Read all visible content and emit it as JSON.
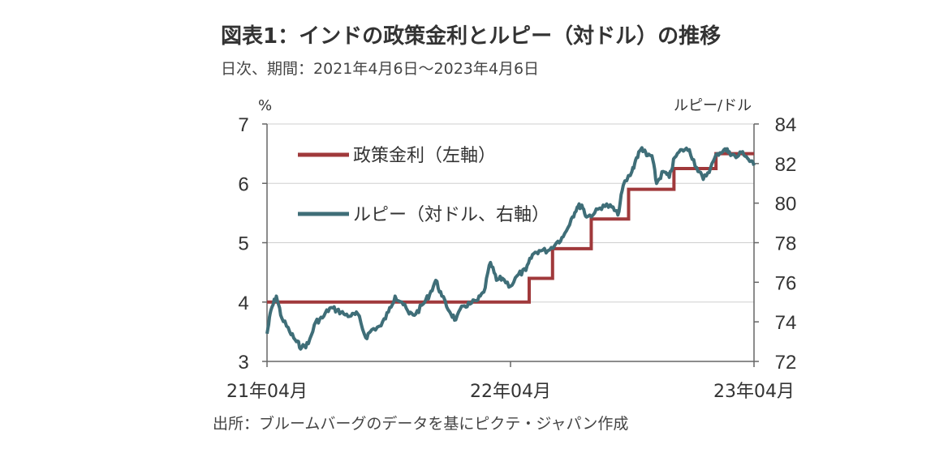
{
  "header": {
    "title": "図表1：インドの政策金利とルピー（対ドル）の推移",
    "subtitle": "日次、期間：2021年4月6日～2023年4月6日"
  },
  "footer": {
    "source": "出所：ブルームバーグのデータを基にピクテ・ジャパン作成"
  },
  "chart_data": {
    "type": "line",
    "left_axis": {
      "unit": "%",
      "range": [
        3,
        7
      ],
      "ticks": [
        "3",
        "4",
        "5",
        "6",
        "7"
      ]
    },
    "right_axis": {
      "unit": "ルピー/ドル",
      "range": [
        72,
        84
      ],
      "ticks": [
        "72",
        "74",
        "76",
        "78",
        "80",
        "82",
        "84"
      ]
    },
    "x_axis": {
      "ticks": [
        "21年04月",
        "22年04月",
        "23年04月"
      ]
    },
    "grid": "horizontal",
    "legend_position": "top-left",
    "series": [
      {
        "name": "政策金利（左軸）",
        "axis": "left",
        "color": "#a0393b",
        "points": [
          [
            "2021-04-06",
            4.0
          ],
          [
            "2022-05-04",
            4.4
          ],
          [
            "2022-06-08",
            4.9
          ],
          [
            "2022-08-05",
            5.4
          ],
          [
            "2022-09-30",
            5.9
          ],
          [
            "2022-12-07",
            6.25
          ],
          [
            "2023-02-08",
            6.5
          ],
          [
            "2023-04-06",
            6.5
          ]
        ]
      },
      {
        "name": "ルピー（対ドル、右軸）",
        "axis": "right",
        "color": "#3f6e78",
        "points": [
          [
            "2021-04-06",
            73.4
          ],
          [
            "2021-04-12",
            74.6
          ],
          [
            "2021-04-20",
            75.3
          ],
          [
            "2021-04-28",
            74.2
          ],
          [
            "2021-05-10",
            73.5
          ],
          [
            "2021-05-20",
            73.0
          ],
          [
            "2021-05-28",
            72.7
          ],
          [
            "2021-06-07",
            72.9
          ],
          [
            "2021-06-18",
            74.0
          ],
          [
            "2021-06-28",
            74.2
          ],
          [
            "2021-07-09",
            74.7
          ],
          [
            "2021-07-20",
            74.6
          ],
          [
            "2021-07-30",
            74.4
          ],
          [
            "2021-08-10",
            74.3
          ],
          [
            "2021-08-20",
            74.4
          ],
          [
            "2021-09-01",
            73.2
          ],
          [
            "2021-09-10",
            73.6
          ],
          [
            "2021-09-24",
            73.8
          ],
          [
            "2021-10-05",
            74.5
          ],
          [
            "2021-10-15",
            75.3
          ],
          [
            "2021-10-25",
            75.0
          ],
          [
            "2021-11-05",
            74.4
          ],
          [
            "2021-11-15",
            74.4
          ],
          [
            "2021-11-26",
            74.9
          ],
          [
            "2021-12-06",
            75.4
          ],
          [
            "2021-12-15",
            76.1
          ],
          [
            "2021-12-24",
            75.3
          ],
          [
            "2022-01-05",
            74.5
          ],
          [
            "2022-01-14",
            74.1
          ],
          [
            "2022-01-25",
            74.8
          ],
          [
            "2022-02-04",
            74.9
          ],
          [
            "2022-02-16",
            75.1
          ],
          [
            "2022-02-25",
            75.5
          ],
          [
            "2022-03-07",
            77.0
          ],
          [
            "2022-03-16",
            76.1
          ],
          [
            "2022-03-25",
            76.2
          ],
          [
            "2022-04-06",
            75.8
          ],
          [
            "2022-04-18",
            76.4
          ],
          [
            "2022-04-29",
            76.6
          ],
          [
            "2022-05-09",
            77.4
          ],
          [
            "2022-05-19",
            77.6
          ],
          [
            "2022-06-01",
            77.6
          ],
          [
            "2022-06-14",
            78.0
          ],
          [
            "2022-06-24",
            78.3
          ],
          [
            "2022-07-06",
            79.2
          ],
          [
            "2022-07-15",
            79.8
          ],
          [
            "2022-07-22",
            79.9
          ],
          [
            "2022-07-29",
            79.3
          ],
          [
            "2022-08-10",
            79.5
          ],
          [
            "2022-08-23",
            79.9
          ],
          [
            "2022-09-05",
            79.8
          ],
          [
            "2022-09-14",
            79.4
          ],
          [
            "2022-09-22",
            80.9
          ],
          [
            "2022-10-05",
            81.6
          ],
          [
            "2022-10-12",
            82.3
          ],
          [
            "2022-10-20",
            82.8
          ],
          [
            "2022-10-27",
            82.4
          ],
          [
            "2022-11-04",
            82.4
          ],
          [
            "2022-11-11",
            81.0
          ],
          [
            "2022-11-21",
            81.6
          ],
          [
            "2022-11-30",
            81.3
          ],
          [
            "2022-12-08",
            82.3
          ],
          [
            "2022-12-19",
            82.7
          ],
          [
            "2022-12-30",
            82.7
          ],
          [
            "2023-01-10",
            81.8
          ],
          [
            "2023-01-20",
            81.2
          ],
          [
            "2023-01-31",
            81.8
          ],
          [
            "2023-02-10",
            82.5
          ],
          [
            "2023-02-20",
            82.7
          ],
          [
            "2023-02-28",
            82.6
          ],
          [
            "2023-03-10",
            82.3
          ],
          [
            "2023-03-20",
            82.6
          ],
          [
            "2023-03-29",
            82.2
          ],
          [
            "2023-04-06",
            81.9
          ]
        ]
      }
    ]
  }
}
